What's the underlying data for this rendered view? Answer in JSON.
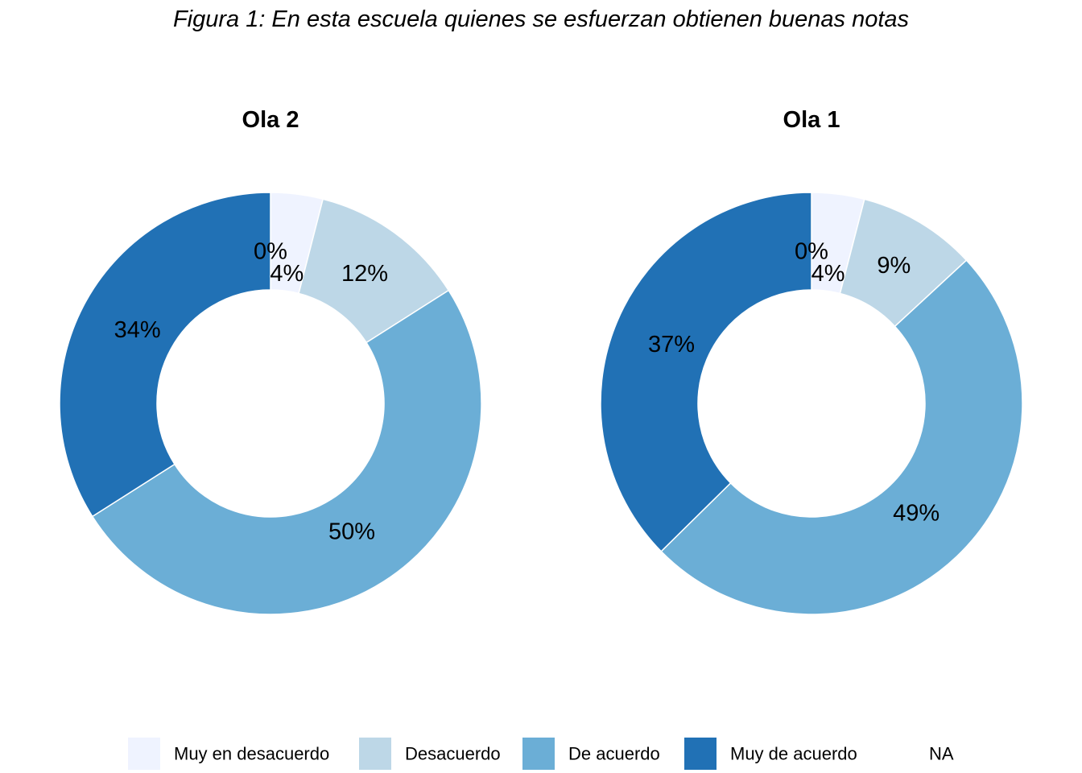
{
  "title": "Figura 1: En esta escuela quienes se esfuerzan obtienen buenas notas",
  "chart_data": {
    "type": "pie",
    "subtype": "donut",
    "title": "Figura 1: En esta escuela quienes se esfuerzan obtienen buenas notas",
    "categories": [
      "Muy en desacuerdo",
      "Desacuerdo",
      "De acuerdo",
      "Muy de acuerdo",
      "NA"
    ],
    "colors": [
      "#EFF3FF",
      "#BDD7E7",
      "#6BAED6",
      "#2171B5",
      "#FFFFFF"
    ],
    "panels": [
      {
        "name": "Ola 2",
        "values": [
          4,
          12,
          50,
          34,
          0
        ],
        "labels": [
          "4%",
          "12%",
          "50%",
          "34%",
          "0%"
        ]
      },
      {
        "name": "Ola 1",
        "values": [
          4,
          9,
          49,
          37,
          0
        ],
        "labels": [
          "4%",
          "9%",
          "49%",
          "37%",
          "0%"
        ]
      }
    ],
    "legend": {
      "position": "bottom",
      "labels": [
        "Muy en desacuerdo",
        "Desacuerdo",
        "De acuerdo",
        "Muy de acuerdo",
        "NA"
      ]
    }
  }
}
